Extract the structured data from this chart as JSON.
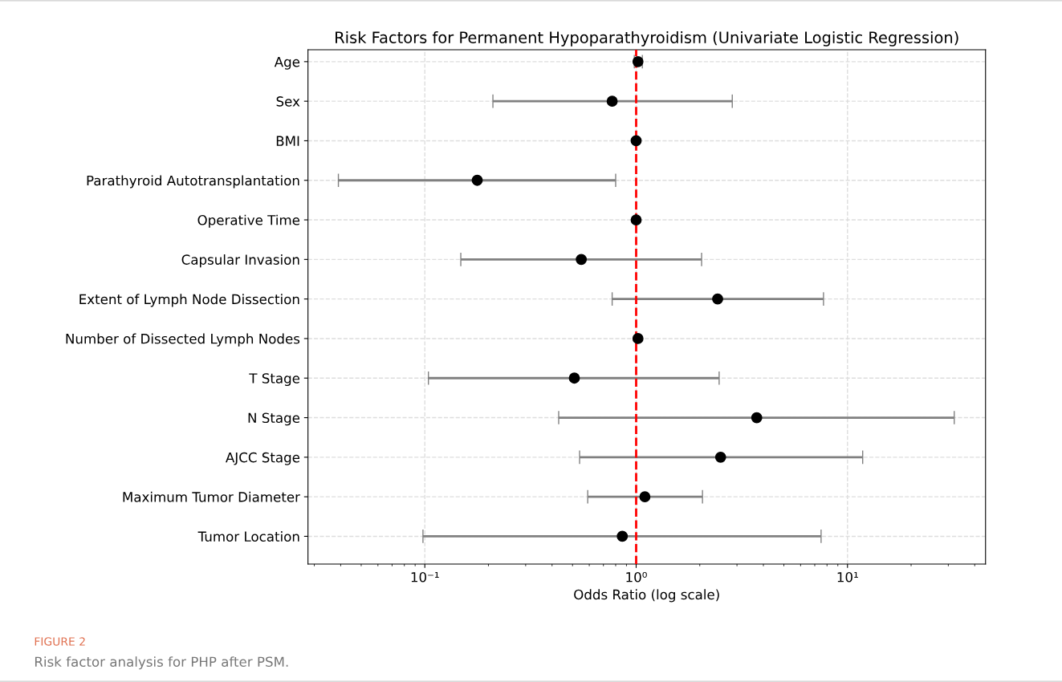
{
  "chart_data": {
    "type": "scatter",
    "orientation": "horizontal",
    "title": "Risk Factors for Permanent Hypoparathyroidism (Univariate Logistic Regression)",
    "xlabel": "Odds Ratio (log scale)",
    "categories": [
      "Age",
      "Sex",
      "BMI",
      "Parathyroid Autotransplantation",
      "Operative Time",
      "Capsular Invasion",
      "Extent of Lymph Node Dissection",
      "Number of Dissected Lymph Nodes",
      "T Stage",
      "N Stage",
      "AJCC Stage",
      "Maximum Tumor Diameter",
      "Tumor Location"
    ],
    "color": "#000000",
    "values": [
      1.02,
      0.77,
      1.0,
      0.177,
      1.0,
      0.55,
      2.43,
      1.02,
      0.51,
      3.72,
      2.51,
      1.1,
      0.86
    ],
    "errors": [
      [
        0.98,
        1.07
      ],
      [
        0.21,
        2.85
      ],
      null,
      [
        0.039,
        0.8
      ],
      null,
      [
        0.148,
        2.04
      ],
      [
        0.77,
        7.7
      ],
      null,
      [
        0.104,
        2.47
      ],
      [
        0.43,
        32
      ],
      [
        0.54,
        11.8
      ],
      [
        0.59,
        2.06
      ],
      [
        0.098,
        7.5
      ]
    ],
    "log": "x",
    "xlim": [
      0.028,
      45
    ],
    "xticks": [
      {
        "value": 0.1,
        "label": "10⁻¹"
      },
      {
        "value": 1,
        "label": "10⁰"
      },
      {
        "value": 10,
        "label": "10¹"
      }
    ],
    "marker": "circle",
    "grid": true,
    "ref_lines": [
      {
        "axis": "x",
        "value": 1,
        "color": "#ff0000",
        "line_style": "dashed"
      }
    ],
    "annotations": [
      "FIGURE 2",
      "Risk factor analysis for PHP after PSM."
    ]
  }
}
